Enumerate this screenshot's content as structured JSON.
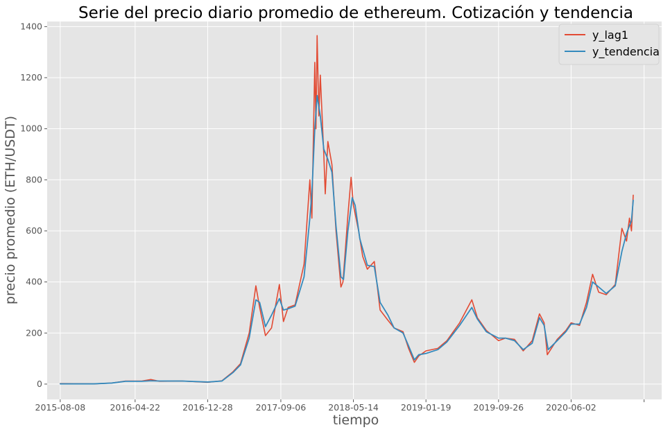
{
  "chart_data": {
    "type": "line",
    "title": "Serie del precio diario promedio de ethereum. Cotización y tendencia",
    "xlabel": "tiempo",
    "ylabel": "precio promedio (ETH/USDT)",
    "grid": true,
    "legend_position": "top-right",
    "colors": {
      "background": "#e5e5e5",
      "grid": "#ffffff",
      "y_lag1": "#e24a33",
      "y_tendencia": "#348abd"
    },
    "x_ticks": [
      "2015-08-08",
      "2016-04-22",
      "2016-12-28",
      "2017-09-06",
      "2018-05-14",
      "2019-01-19",
      "2019-09-26",
      "2020-06-02",
      ""
    ],
    "y_ticks": [
      0,
      200,
      400,
      600,
      800,
      1000,
      1200,
      1400
    ],
    "ylim": [
      -60,
      1420
    ],
    "xlim": [
      "2015-06-24",
      "2021-04-10"
    ],
    "series": [
      {
        "name": "y_lag1",
        "color": "#e24a33",
        "points": [
          [
            "2015-08-08",
            2
          ],
          [
            "2015-12-01",
            1
          ],
          [
            "2016-02-01",
            4
          ],
          [
            "2016-03-20",
            12
          ],
          [
            "2016-05-15",
            12
          ],
          [
            "2016-06-15",
            18
          ],
          [
            "2016-07-15",
            11
          ],
          [
            "2016-10-01",
            12
          ],
          [
            "2016-12-28",
            7
          ],
          [
            "2017-02-15",
            13
          ],
          [
            "2017-03-25",
            48
          ],
          [
            "2017-04-20",
            80
          ],
          [
            "2017-05-20",
            200
          ],
          [
            "2017-06-12",
            385
          ],
          [
            "2017-06-25",
            300
          ],
          [
            "2017-07-15",
            190
          ],
          [
            "2017-08-05",
            220
          ],
          [
            "2017-09-01",
            390
          ],
          [
            "2017-09-15",
            245
          ],
          [
            "2017-10-01",
            300
          ],
          [
            "2017-10-25",
            310
          ],
          [
            "2017-11-25",
            470
          ],
          [
            "2017-12-15",
            800
          ],
          [
            "2017-12-22",
            650
          ],
          [
            "2018-01-01",
            1260
          ],
          [
            "2018-01-05",
            1000
          ],
          [
            "2018-01-09",
            1365
          ],
          [
            "2018-01-15",
            1050
          ],
          [
            "2018-01-20",
            1210
          ],
          [
            "2018-02-01",
            900
          ],
          [
            "2018-02-06",
            745
          ],
          [
            "2018-02-15",
            950
          ],
          [
            "2018-03-01",
            860
          ],
          [
            "2018-03-15",
            600
          ],
          [
            "2018-04-01",
            380
          ],
          [
            "2018-04-08",
            400
          ],
          [
            "2018-04-25",
            660
          ],
          [
            "2018-05-06",
            810
          ],
          [
            "2018-05-14",
            700
          ],
          [
            "2018-06-01",
            600
          ],
          [
            "2018-06-15",
            500
          ],
          [
            "2018-07-01",
            450
          ],
          [
            "2018-07-25",
            480
          ],
          [
            "2018-08-14",
            290
          ],
          [
            "2018-09-10",
            250
          ],
          [
            "2018-10-01",
            220
          ],
          [
            "2018-11-01",
            205
          ],
          [
            "2018-11-20",
            140
          ],
          [
            "2018-12-10",
            85
          ],
          [
            "2018-12-25",
            110
          ],
          [
            "2019-01-19",
            130
          ],
          [
            "2019-03-01",
            140
          ],
          [
            "2019-04-01",
            170
          ],
          [
            "2019-05-15",
            240
          ],
          [
            "2019-06-26",
            330
          ],
          [
            "2019-07-15",
            260
          ],
          [
            "2019-08-15",
            210
          ],
          [
            "2019-09-26",
            170
          ],
          [
            "2019-10-20",
            180
          ],
          [
            "2019-11-20",
            175
          ],
          [
            "2019-12-20",
            130
          ],
          [
            "2020-01-20",
            170
          ],
          [
            "2020-02-14",
            275
          ],
          [
            "2020-03-01",
            240
          ],
          [
            "2020-03-12",
            115
          ],
          [
            "2020-04-15",
            175
          ],
          [
            "2020-05-15",
            210
          ],
          [
            "2020-06-02",
            240
          ],
          [
            "2020-07-01",
            230
          ],
          [
            "2020-07-25",
            320
          ],
          [
            "2020-08-15",
            430
          ],
          [
            "2020-09-05",
            360
          ],
          [
            "2020-10-01",
            350
          ],
          [
            "2020-11-01",
            390
          ],
          [
            "2020-11-24",
            610
          ],
          [
            "2020-12-10",
            560
          ],
          [
            "2020-12-20",
            650
          ],
          [
            "2020-12-27",
            600
          ],
          [
            "2021-01-02",
            740
          ]
        ]
      },
      {
        "name": "y_tendencia",
        "color": "#348abd",
        "points": [
          [
            "2015-08-08",
            1
          ],
          [
            "2015-12-01",
            1
          ],
          [
            "2016-02-01",
            4
          ],
          [
            "2016-03-20",
            11
          ],
          [
            "2016-05-15",
            11
          ],
          [
            "2016-06-15",
            13
          ],
          [
            "2016-07-15",
            12
          ],
          [
            "2016-10-01",
            12
          ],
          [
            "2016-12-28",
            8
          ],
          [
            "2017-02-15",
            12
          ],
          [
            "2017-03-25",
            45
          ],
          [
            "2017-04-20",
            75
          ],
          [
            "2017-05-20",
            180
          ],
          [
            "2017-06-12",
            330
          ],
          [
            "2017-06-25",
            320
          ],
          [
            "2017-07-15",
            225
          ],
          [
            "2017-08-05",
            270
          ],
          [
            "2017-09-01",
            335
          ],
          [
            "2017-09-15",
            290
          ],
          [
            "2017-10-01",
            295
          ],
          [
            "2017-10-25",
            305
          ],
          [
            "2017-11-25",
            420
          ],
          [
            "2017-12-15",
            650
          ],
          [
            "2017-12-22",
            750
          ],
          [
            "2018-01-01",
            1000
          ],
          [
            "2018-01-09",
            1130
          ],
          [
            "2018-01-20",
            1050
          ],
          [
            "2018-02-01",
            920
          ],
          [
            "2018-02-15",
            880
          ],
          [
            "2018-03-01",
            830
          ],
          [
            "2018-03-15",
            620
          ],
          [
            "2018-04-01",
            420
          ],
          [
            "2018-04-10",
            410
          ],
          [
            "2018-04-25",
            600
          ],
          [
            "2018-05-10",
            730
          ],
          [
            "2018-05-20",
            700
          ],
          [
            "2018-06-05",
            570
          ],
          [
            "2018-07-01",
            465
          ],
          [
            "2018-07-25",
            460
          ],
          [
            "2018-08-14",
            320
          ],
          [
            "2018-09-10",
            270
          ],
          [
            "2018-10-01",
            220
          ],
          [
            "2018-11-01",
            200
          ],
          [
            "2018-11-20",
            150
          ],
          [
            "2018-12-10",
            95
          ],
          [
            "2018-12-25",
            115
          ],
          [
            "2019-01-19",
            120
          ],
          [
            "2019-03-01",
            135
          ],
          [
            "2019-04-01",
            165
          ],
          [
            "2019-05-15",
            230
          ],
          [
            "2019-06-26",
            300
          ],
          [
            "2019-07-15",
            255
          ],
          [
            "2019-08-15",
            205
          ],
          [
            "2019-09-26",
            180
          ],
          [
            "2019-10-20",
            180
          ],
          [
            "2019-11-20",
            170
          ],
          [
            "2019-12-20",
            135
          ],
          [
            "2020-01-20",
            160
          ],
          [
            "2020-02-14",
            260
          ],
          [
            "2020-03-01",
            230
          ],
          [
            "2020-03-15",
            135
          ],
          [
            "2020-04-15",
            170
          ],
          [
            "2020-05-15",
            205
          ],
          [
            "2020-06-02",
            235
          ],
          [
            "2020-07-01",
            235
          ],
          [
            "2020-07-25",
            300
          ],
          [
            "2020-08-15",
            400
          ],
          [
            "2020-09-05",
            380
          ],
          [
            "2020-10-01",
            355
          ],
          [
            "2020-11-01",
            385
          ],
          [
            "2020-11-24",
            520
          ],
          [
            "2020-12-10",
            590
          ],
          [
            "2020-12-20",
            620
          ],
          [
            "2020-12-27",
            640
          ],
          [
            "2021-01-02",
            720
          ]
        ]
      }
    ]
  }
}
